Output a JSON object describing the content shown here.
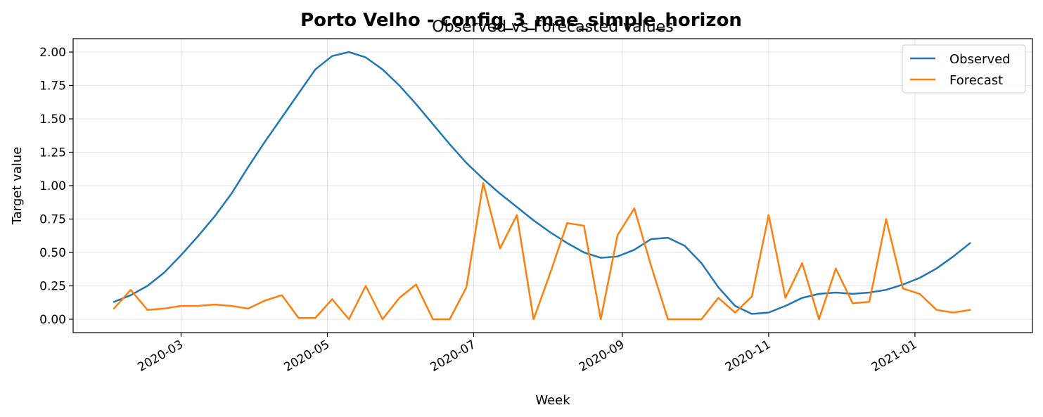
{
  "chart_data": {
    "type": "line",
    "title": "Porto Velho - config_3_mae_simple_horizon",
    "subtitle": "Observed vs Forecasted values",
    "xlabel": "Week",
    "ylabel": "Target value",
    "xlim": [
      "2020-01-16",
      "2021-02-19"
    ],
    "ylim": [
      -0.1,
      2.1
    ],
    "x_tick_labels": [
      "2020-03",
      "2020-05",
      "2020-07",
      "2020-09",
      "2020-11",
      "2021-01"
    ],
    "x_tick_dates": [
      "2020-03-01",
      "2020-05-01",
      "2020-07-01",
      "2020-09-01",
      "2020-11-01",
      "2021-01-01"
    ],
    "y_tick_values": [
      0.0,
      0.25,
      0.5,
      0.75,
      1.0,
      1.25,
      1.5,
      1.75,
      2.0
    ],
    "y_tick_labels": [
      "0.00",
      "0.25",
      "0.50",
      "0.75",
      "1.00",
      "1.25",
      "1.50",
      "1.75",
      "2.00"
    ],
    "grid": true,
    "legend_position": "top-right",
    "x": [
      "2020-02-02",
      "2020-02-09",
      "2020-02-16",
      "2020-02-23",
      "2020-03-01",
      "2020-03-08",
      "2020-03-15",
      "2020-03-22",
      "2020-03-29",
      "2020-04-05",
      "2020-04-12",
      "2020-04-19",
      "2020-04-26",
      "2020-05-03",
      "2020-05-10",
      "2020-05-17",
      "2020-05-24",
      "2020-05-31",
      "2020-06-07",
      "2020-06-14",
      "2020-06-21",
      "2020-06-28",
      "2020-07-05",
      "2020-07-12",
      "2020-07-19",
      "2020-07-26",
      "2020-08-02",
      "2020-08-09",
      "2020-08-16",
      "2020-08-23",
      "2020-08-30",
      "2020-09-06",
      "2020-09-13",
      "2020-09-20",
      "2020-09-27",
      "2020-10-04",
      "2020-10-11",
      "2020-10-18",
      "2020-10-25",
      "2020-11-01",
      "2020-11-08",
      "2020-11-15",
      "2020-11-22",
      "2020-11-29",
      "2020-12-06",
      "2020-12-13",
      "2020-12-20",
      "2020-12-27",
      "2021-01-03",
      "2021-01-10",
      "2021-01-17",
      "2021-01-24"
    ],
    "series": [
      {
        "name": "Observed",
        "color": "#1f77b4",
        "values": [
          0.13,
          0.18,
          0.25,
          0.35,
          0.48,
          0.62,
          0.77,
          0.94,
          1.14,
          1.33,
          1.51,
          1.69,
          1.87,
          1.97,
          2.0,
          1.96,
          1.87,
          1.75,
          1.61,
          1.46,
          1.31,
          1.17,
          1.05,
          0.94,
          0.84,
          0.74,
          0.65,
          0.57,
          0.5,
          0.46,
          0.47,
          0.52,
          0.6,
          0.61,
          0.55,
          0.42,
          0.24,
          0.1,
          0.04,
          0.05,
          0.1,
          0.16,
          0.19,
          0.2,
          0.19,
          0.2,
          0.22,
          0.26,
          0.31,
          0.38,
          0.47,
          0.57
        ]
      },
      {
        "name": "Forecast",
        "color": "#ff7f0e",
        "values": [
          0.08,
          0.22,
          0.07,
          0.08,
          0.1,
          0.1,
          0.11,
          0.1,
          0.08,
          0.14,
          0.18,
          0.01,
          0.01,
          0.15,
          0.0,
          0.25,
          0.0,
          0.16,
          0.26,
          0.0,
          0.0,
          0.24,
          1.02,
          0.53,
          0.78,
          0.0,
          0.35,
          0.72,
          0.7,
          0.0,
          0.63,
          0.83,
          0.4,
          0.0,
          0.0,
          0.0,
          0.16,
          0.05,
          0.17,
          0.78,
          0.16,
          0.42,
          0.0,
          0.38,
          0.12,
          0.13,
          0.75,
          0.23,
          0.19,
          0.07,
          0.05,
          0.07
        ]
      }
    ]
  }
}
